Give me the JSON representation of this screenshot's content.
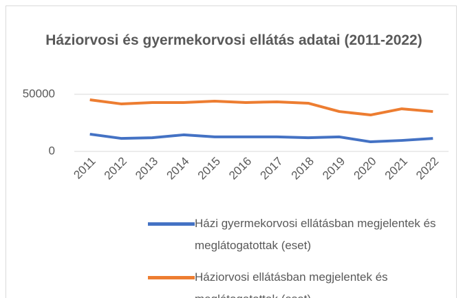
{
  "chart_data": {
    "type": "line",
    "title": "Háziorvosi és gyermekorvosi ellátás adatai (2011-2022)",
    "categories": [
      "2011",
      "2012",
      "2013",
      "2014",
      "2015",
      "2016",
      "2017",
      "2018",
      "2019",
      "2020",
      "2021",
      "2022"
    ],
    "series": [
      {
        "name": "Házi gyermekorvosi ellátásban megjelentek és meglátogatottak (eset)",
        "color": "#4472c4",
        "values": [
          15100,
          11400,
          12000,
          14500,
          12700,
          12700,
          12700,
          12000,
          12700,
          8400,
          9600,
          11400
        ]
      },
      {
        "name": "Háziorvosi ellátásban megjelentek és meglátogatottak (eset)",
        "color": "#ed7d31",
        "values": [
          45200,
          41600,
          42800,
          42800,
          44000,
          42800,
          43400,
          42200,
          34900,
          31900,
          37300,
          34900
        ]
      }
    ],
    "ylim": [
      0,
      50000
    ],
    "yticks": [
      0,
      50000
    ],
    "grid": true,
    "legend": "bottom"
  }
}
